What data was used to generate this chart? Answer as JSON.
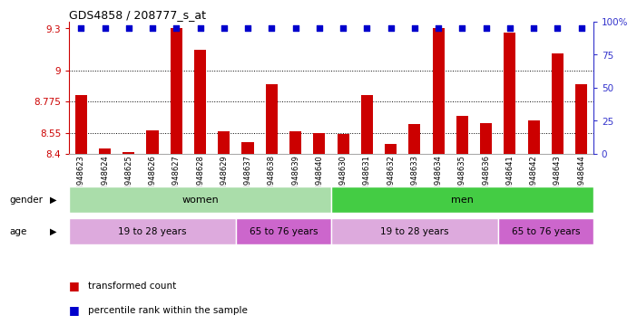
{
  "title": "GDS4858 / 208777_s_at",
  "samples": [
    "GSM948623",
    "GSM948624",
    "GSM948625",
    "GSM948626",
    "GSM948627",
    "GSM948628",
    "GSM948629",
    "GSM948637",
    "GSM948638",
    "GSM948639",
    "GSM948640",
    "GSM948630",
    "GSM948631",
    "GSM948632",
    "GSM948633",
    "GSM948634",
    "GSM948635",
    "GSM948636",
    "GSM948641",
    "GSM948642",
    "GSM948643",
    "GSM948644"
  ],
  "bar_values": [
    8.82,
    8.44,
    8.41,
    8.57,
    9.3,
    9.15,
    8.56,
    8.48,
    8.9,
    8.56,
    8.55,
    8.54,
    8.82,
    8.47,
    8.61,
    9.3,
    8.67,
    8.62,
    9.27,
    8.64,
    9.12,
    8.9
  ],
  "percentile_values": [
    100,
    100,
    100,
    100,
    100,
    100,
    100,
    100,
    100,
    100,
    100,
    100,
    100,
    100,
    100,
    100,
    100,
    100,
    100,
    100,
    100,
    100
  ],
  "ymin": 8.4,
  "ymax": 9.35,
  "yticks": [
    8.4,
    8.55,
    8.775,
    9.0,
    9.3
  ],
  "ytick_labels": [
    "8.4",
    "8.55",
    "8.775",
    "9",
    "9.3"
  ],
  "right_yticks": [
    0,
    25,
    50,
    75,
    100
  ],
  "right_ytick_labels": [
    "0",
    "25",
    "50",
    "75",
    "100%"
  ],
  "bar_color": "#cc0000",
  "dot_color": "#0000cc",
  "dot_value": 9.3,
  "gender_sections": [
    {
      "label": "women",
      "start": 0,
      "end": 11,
      "color": "#aaddaa"
    },
    {
      "label": "men",
      "start": 11,
      "end": 22,
      "color": "#44cc44"
    }
  ],
  "age_sections": [
    {
      "label": "19 to 28 years",
      "start": 0,
      "end": 7,
      "color": "#ddaadd"
    },
    {
      "label": "65 to 76 years",
      "start": 7,
      "end": 11,
      "color": "#cc66cc"
    },
    {
      "label": "19 to 28 years",
      "start": 11,
      "end": 18,
      "color": "#ddaadd"
    },
    {
      "label": "65 to 76 years",
      "start": 18,
      "end": 22,
      "color": "#cc66cc"
    }
  ],
  "legend_red": "transformed count",
  "legend_blue": "percentile rank within the sample",
  "background_color": "#ffffff",
  "axis_color_left": "#cc0000",
  "axis_color_right": "#3333cc"
}
